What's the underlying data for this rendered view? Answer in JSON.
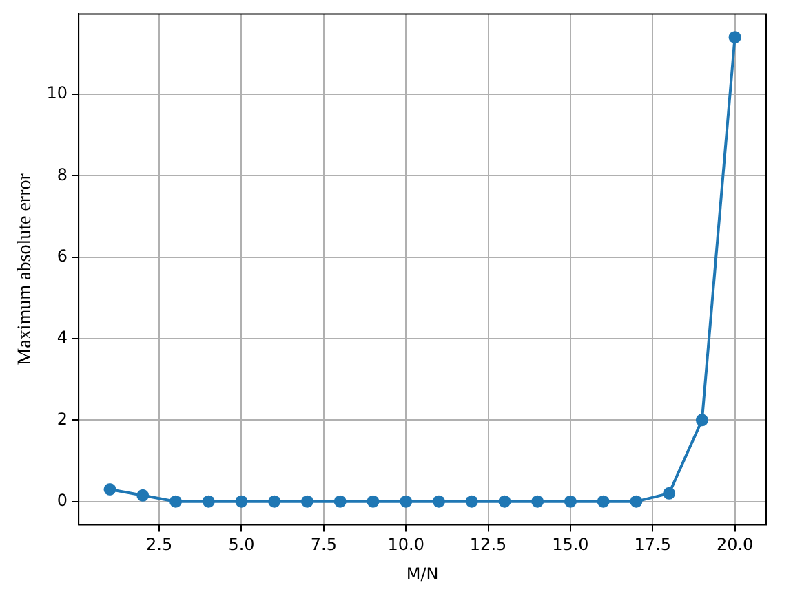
{
  "chart_data": {
    "type": "line",
    "xlabel": "M/N",
    "ylabel": "Maximum absolute error",
    "x": [
      1,
      2,
      3,
      4,
      5,
      6,
      7,
      8,
      9,
      10,
      11,
      12,
      13,
      14,
      15,
      16,
      17,
      18,
      19,
      20
    ],
    "series": [
      {
        "color": "#1f77b4",
        "values": [
          0.3,
          0.15,
          0,
          0,
          0,
          0,
          0,
          0,
          0,
          0,
          0,
          0,
          0,
          0,
          0,
          0,
          0,
          0.2,
          2.0,
          11.4
        ]
      }
    ],
    "xlim": [
      0.05,
      20.95
    ],
    "xticks": [
      {
        "value": 2.5,
        "label": "2.5"
      },
      {
        "value": 5,
        "label": "5.0"
      },
      {
        "value": 7.5,
        "label": "7.5"
      },
      {
        "value": 10,
        "label": "10.0"
      },
      {
        "value": 12.5,
        "label": "12.5"
      },
      {
        "value": 15,
        "label": "15.0"
      },
      {
        "value": 17.5,
        "label": "17.5"
      },
      {
        "value": 20,
        "label": "20.0"
      }
    ],
    "ylim": [
      -0.57,
      11.97
    ],
    "yticks": [
      0,
      2,
      4,
      6,
      8,
      10
    ],
    "grid": true,
    "legend": false,
    "marker": "circle",
    "line_style": "solid"
  }
}
